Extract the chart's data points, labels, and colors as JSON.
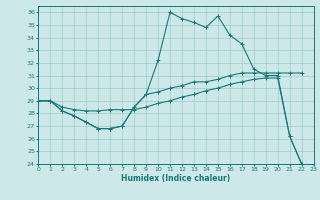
{
  "xlabel": "Humidex (Indice chaleur)",
  "xlim": [
    0,
    23
  ],
  "ylim": [
    24,
    36.5
  ],
  "yticks": [
    24,
    25,
    26,
    27,
    28,
    29,
    30,
    31,
    32,
    33,
    34,
    35,
    36
  ],
  "xticks": [
    0,
    1,
    2,
    3,
    4,
    5,
    6,
    7,
    8,
    9,
    10,
    11,
    12,
    13,
    14,
    15,
    16,
    17,
    18,
    19,
    20,
    21,
    22,
    23
  ],
  "bg_color": "#cce8e8",
  "line_color": "#1a7878",
  "grid_color": "#a0cccc",
  "line1_x": [
    0,
    1,
    2,
    3,
    4,
    5,
    6,
    7,
    8,
    9,
    10,
    11,
    12,
    13,
    14,
    15,
    16,
    17,
    18,
    19,
    20,
    21,
    22
  ],
  "line1_y": [
    29.0,
    29.0,
    28.2,
    27.8,
    27.3,
    26.8,
    26.8,
    27.0,
    28.5,
    29.5,
    32.2,
    36.0,
    35.5,
    35.2,
    34.8,
    35.7,
    34.2,
    33.5,
    31.5,
    31.0,
    31.0,
    26.2,
    24.0
  ],
  "line2_x": [
    0,
    1,
    2,
    3,
    4,
    5,
    6,
    7,
    8,
    9,
    10,
    11,
    12,
    13,
    14,
    15,
    16,
    17,
    18,
    19,
    20,
    21,
    22
  ],
  "line2_y": [
    29.0,
    29.0,
    28.2,
    27.8,
    27.3,
    26.8,
    26.8,
    27.0,
    28.5,
    29.5,
    29.7,
    30.0,
    30.2,
    30.5,
    30.5,
    30.7,
    31.0,
    31.2,
    31.2,
    31.2,
    31.2,
    31.2,
    31.2
  ],
  "line3_x": [
    0,
    1,
    2,
    3,
    4,
    5,
    6,
    7,
    8,
    9,
    10,
    11,
    12,
    13,
    14,
    15,
    16,
    17,
    18,
    19,
    20,
    21,
    22
  ],
  "line3_y": [
    29.0,
    29.0,
    28.5,
    28.3,
    28.2,
    28.2,
    28.3,
    28.3,
    28.3,
    28.5,
    28.8,
    29.0,
    29.3,
    29.5,
    29.8,
    30.0,
    30.3,
    30.5,
    30.7,
    30.8,
    30.8,
    26.2,
    24.0
  ]
}
